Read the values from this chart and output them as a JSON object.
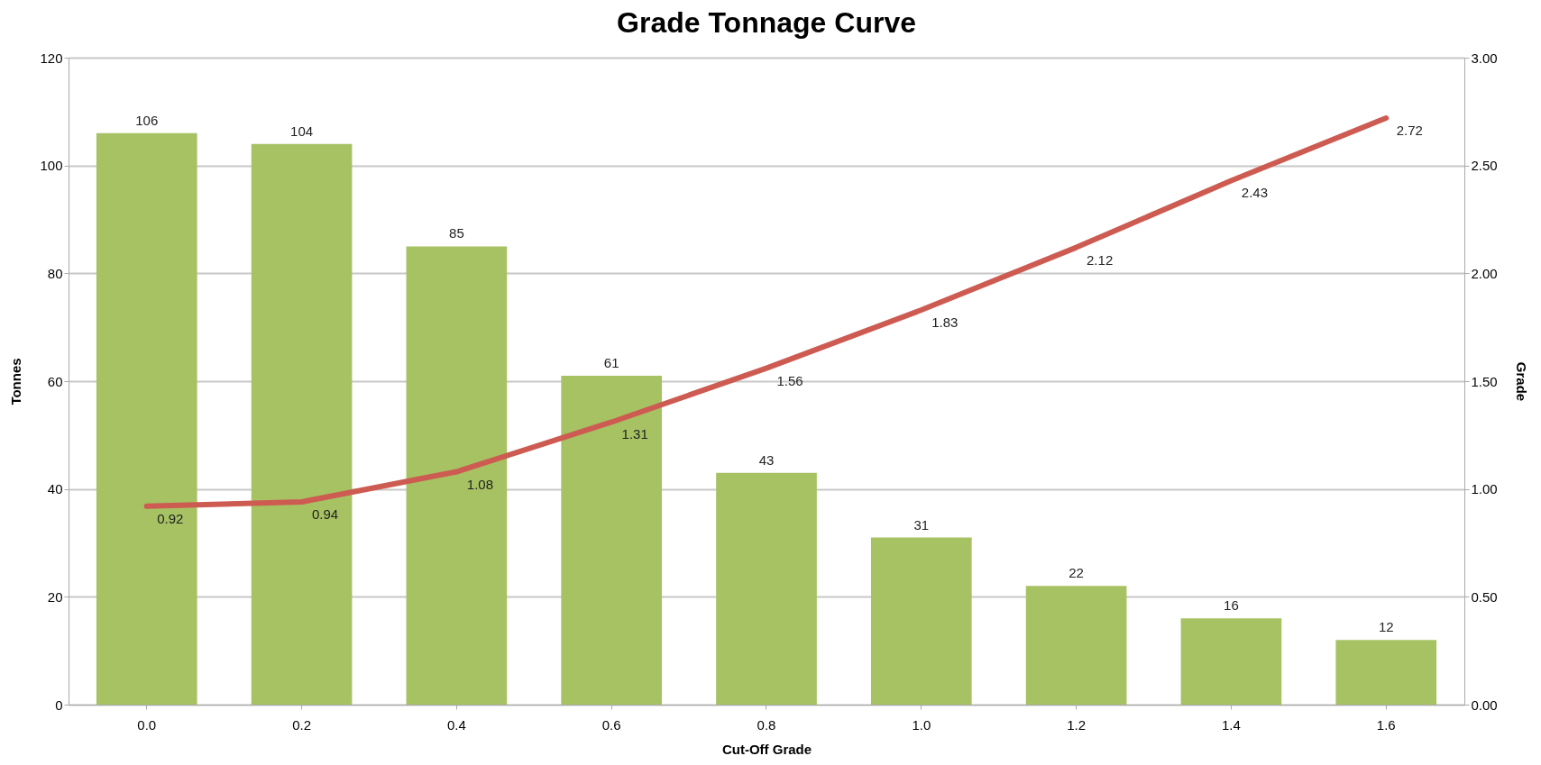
{
  "chart_data": {
    "type": "bar",
    "title": "Grade Tonnage Curve",
    "xlabel": "Cut-Off Grade",
    "ylabel": "Tonnes",
    "y2label": "Grade",
    "categories": [
      "0.0",
      "0.2",
      "0.4",
      "0.6",
      "0.8",
      "1.0",
      "1.2",
      "1.4",
      "1.6"
    ],
    "series": [
      {
        "color": "#a6c263",
        "values": [
          106,
          104,
          85,
          61,
          43,
          31,
          22,
          16,
          12
        ]
      },
      {
        "type": "line",
        "axis": "y2",
        "color": "#cd5b52",
        "values": [
          0.92,
          0.94,
          1.08,
          1.31,
          1.56,
          1.83,
          2.12,
          2.43,
          2.72
        ]
      }
    ],
    "ylim": [
      0,
      120
    ],
    "yticks": [
      0,
      20,
      40,
      60,
      80,
      100,
      120
    ],
    "y2lim": [
      0,
      3
    ],
    "y2ticks": [
      {
        "value": 0,
        "label": "0.00"
      },
      {
        "value": 0.5,
        "label": "0.50"
      },
      {
        "value": 1,
        "label": "1.00"
      },
      {
        "value": 1.5,
        "label": "1.50"
      },
      {
        "value": 2,
        "label": "2.00"
      },
      {
        "value": 2.5,
        "label": "2.50"
      },
      {
        "value": 3,
        "label": "3.00"
      }
    ],
    "grid": "y",
    "data_labels": true
  }
}
